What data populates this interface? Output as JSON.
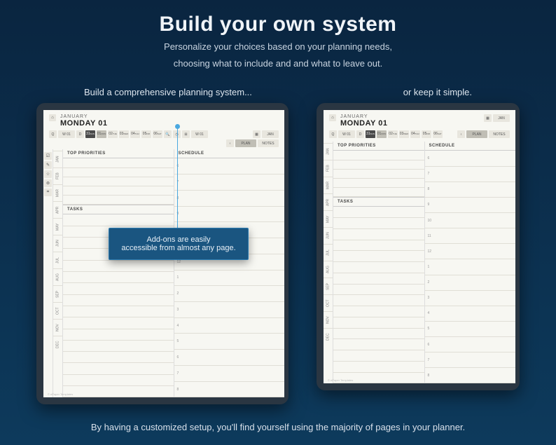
{
  "hero": {
    "title": "Build your own system",
    "subtitle1": "Personalize your choices based on your planning needs,",
    "subtitle2": "choosing what to include and and what to leave out."
  },
  "captions": {
    "left": "Build a comprehensive planning system...",
    "right": "or keep it simple."
  },
  "planner": {
    "month": "JANUARY",
    "day": "MONDAY 01",
    "week_label": "W 01",
    "jan_label": "JAN",
    "plan_label": "PLAN",
    "notes_label": "NOTES",
    "days": [
      "31",
      "01",
      "02",
      "03",
      "04",
      "05",
      "06"
    ],
    "daynames": [
      "SUN",
      "MON",
      "TUE",
      "WED",
      "THU",
      "FRI",
      "SAT"
    ],
    "priorities_label": "TOP PRIORITIES",
    "tasks_label": "TASKS",
    "schedule_label": "SCHEDULE",
    "hours": [
      "6",
      "7",
      "8",
      "9",
      "10",
      "11",
      "12",
      "1",
      "2",
      "3",
      "4",
      "5",
      "6",
      "7",
      "8"
    ],
    "months": [
      "JAN",
      "FEB",
      "MAR",
      "APR",
      "MAY",
      "JUN",
      "JUL",
      "AUG",
      "SEP",
      "OCT",
      "NOV",
      "DEC"
    ],
    "footer": "© ePaper Templates"
  },
  "callout": {
    "line1": "Add-ons are easily",
    "line2": "accessible from almost any page."
  },
  "footer": "By having a customized setup, you'll find yourself using the majority of pages in your planner."
}
